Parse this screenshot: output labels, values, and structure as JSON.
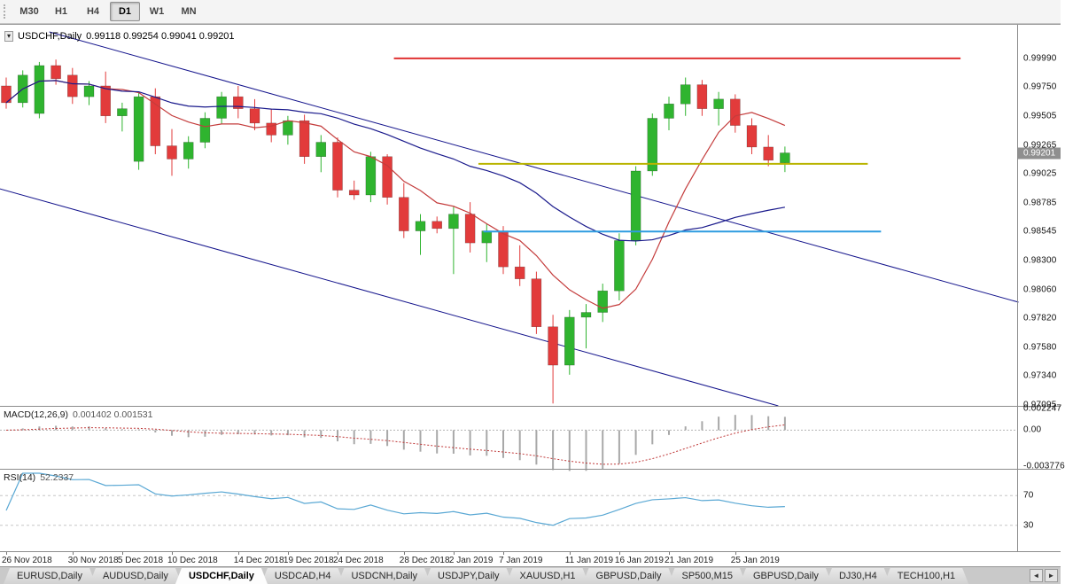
{
  "toolbar": {
    "timeframes": [
      {
        "label": "M30",
        "active": false
      },
      {
        "label": "H1",
        "active": false
      },
      {
        "label": "H4",
        "active": false
      },
      {
        "label": "D1",
        "active": true
      },
      {
        "label": "W1",
        "active": false
      },
      {
        "label": "MN",
        "active": false
      }
    ]
  },
  "icons": {
    "chart_menu": "▾",
    "tab_scroll_left": "◄",
    "tab_scroll_right": "►"
  },
  "chart": {
    "title": "USDCHF,Daily",
    "ohlc_text": "0.99118 0.99254 0.99041 0.99201",
    "current_price": "0.99201",
    "price_ticks": [
      "0.99990",
      "0.99750",
      "0.99505",
      "0.99265",
      "0.99025",
      "0.98785",
      "0.98545",
      "0.98300",
      "0.98060",
      "0.97820",
      "0.97580",
      "0.97340",
      "0.97095"
    ]
  },
  "macd": {
    "label": "MACD(12,26,9)",
    "values_text": "0.001402 0.001531",
    "main_value": 0.001402,
    "signal_value": 0.001531,
    "scale": [
      {
        "label": "0.002247",
        "value": 0.002247
      },
      {
        "label": "0.00",
        "value": 0
      },
      {
        "label": "-0.003776",
        "value": -0.003776
      }
    ],
    "range": {
      "max": 0.00245,
      "min": -0.00405
    },
    "hist_color": "#a8a8a8",
    "signal_color": "#c03a3a"
  },
  "rsi": {
    "label": "RSI(14)",
    "value_text": "52.2337",
    "value": 52.2337,
    "levels": [
      70,
      30
    ],
    "color": "#5aa8d4"
  },
  "tabs": [
    {
      "label": "EURUSD,Daily",
      "active": false
    },
    {
      "label": "AUDUSD,Daily",
      "active": false
    },
    {
      "label": "USDCHF,Daily",
      "active": true
    },
    {
      "label": "USDCAD,H4",
      "active": false
    },
    {
      "label": "USDCNH,Daily",
      "active": false
    },
    {
      "label": "USDJPY,Daily",
      "active": false
    },
    {
      "label": "XAUUSD,H1",
      "active": false
    },
    {
      "label": "GBPUSD,Daily",
      "active": false
    },
    {
      "label": "SP500,M15",
      "active": false
    },
    {
      "label": "GBPUSD,Daily",
      "active": false
    },
    {
      "label": "DJ30,H4",
      "active": false
    },
    {
      "label": "TECH100,H1",
      "active": false
    }
  ],
  "chart_data": {
    "type": "candlestick",
    "symbol": "USDCHF",
    "timeframe": "Daily",
    "current_bar": {
      "open": 0.99118,
      "high": 0.99254,
      "low": 0.99041,
      "close": 0.99201
    },
    "price_range": {
      "top": 1.0027,
      "bottom": 0.9709
    },
    "up_color": "#2fb42f",
    "down_color": "#e23b3b",
    "candles": [
      [
        "2018-11-26",
        0.9976,
        0.9983,
        0.9957,
        0.9962
      ],
      [
        "2018-11-27",
        0.9962,
        0.9989,
        0.9958,
        0.9985
      ],
      [
        "2018-11-28",
        0.9953,
        0.9996,
        0.9949,
        0.9993
      ],
      [
        "2018-11-29",
        0.9993,
        0.9998,
        0.9977,
        0.9982
      ],
      [
        "2018-11-30",
        0.9985,
        0.9991,
        0.9961,
        0.9967
      ],
      [
        "2018-12-03",
        0.9967,
        0.998,
        0.996,
        0.9976
      ],
      [
        "2018-12-04",
        0.9976,
        0.9988,
        0.9945,
        0.9951
      ],
      [
        "2018-12-05",
        0.9951,
        0.9962,
        0.9938,
        0.9957
      ],
      [
        "2018-12-06",
        0.9913,
        0.9971,
        0.9906,
        0.9967
      ],
      [
        "2018-12-07",
        0.9967,
        0.9974,
        0.9919,
        0.9926
      ],
      [
        "2018-12-10",
        0.9926,
        0.994,
        0.9901,
        0.9915
      ],
      [
        "2018-12-11",
        0.9915,
        0.9934,
        0.9907,
        0.9929
      ],
      [
        "2018-12-12",
        0.9929,
        0.9954,
        0.9924,
        0.9949
      ],
      [
        "2018-12-13",
        0.9949,
        0.9971,
        0.9944,
        0.9967
      ],
      [
        "2018-12-14",
        0.9967,
        0.9976,
        0.9949,
        0.9957
      ],
      [
        "2018-12-17",
        0.9957,
        0.9965,
        0.9939,
        0.9945
      ],
      [
        "2018-12-18",
        0.9945,
        0.9957,
        0.9929,
        0.9935
      ],
      [
        "2018-12-19",
        0.9935,
        0.9951,
        0.9927,
        0.9947
      ],
      [
        "2018-12-20",
        0.9947,
        0.9952,
        0.9911,
        0.9917
      ],
      [
        "2018-12-21",
        0.9917,
        0.9935,
        0.9904,
        0.9929
      ],
      [
        "2018-12-24",
        0.9929,
        0.9933,
        0.9883,
        0.9889
      ],
      [
        "2018-12-25",
        0.9889,
        0.9897,
        0.9881,
        0.9885
      ],
      [
        "2018-12-26",
        0.9885,
        0.9921,
        0.9879,
        0.9917
      ],
      [
        "2018-12-27",
        0.9917,
        0.9919,
        0.9877,
        0.9883
      ],
      [
        "2018-12-28",
        0.9883,
        0.9895,
        0.9849,
        0.9855
      ],
      [
        "2018-12-31",
        0.9855,
        0.9869,
        0.9835,
        0.9863
      ],
      [
        "2019-01-01",
        0.9863,
        0.9867,
        0.9853,
        0.9857
      ],
      [
        "2019-01-02",
        0.9857,
        0.9875,
        0.9819,
        0.9869
      ],
      [
        "2019-01-03",
        0.9869,
        0.9879,
        0.9837,
        0.9845
      ],
      [
        "2019-01-04",
        0.9845,
        0.9861,
        0.9829,
        0.9855
      ],
      [
        "2019-01-07",
        0.9855,
        0.9859,
        0.9819,
        0.9825
      ],
      [
        "2019-01-08",
        0.9825,
        0.9843,
        0.9809,
        0.9815
      ],
      [
        "2019-01-09",
        0.9815,
        0.9821,
        0.9769,
        0.9775
      ],
      [
        "2019-01-10",
        0.9775,
        0.9785,
        0.9711,
        0.9743
      ],
      [
        "2019-01-11",
        0.9743,
        0.9789,
        0.9735,
        0.9783
      ],
      [
        "2019-01-14",
        0.9783,
        0.9794,
        0.9757,
        0.9787
      ],
      [
        "2019-01-15",
        0.9787,
        0.9811,
        0.9779,
        0.9805
      ],
      [
        "2019-01-16",
        0.9805,
        0.9853,
        0.9797,
        0.9847
      ],
      [
        "2019-01-17",
        0.9847,
        0.9909,
        0.9843,
        0.9905
      ],
      [
        "2019-01-18",
        0.9905,
        0.9953,
        0.9901,
        0.9949
      ],
      [
        "2019-01-21",
        0.9949,
        0.9967,
        0.9939,
        0.9961
      ],
      [
        "2019-01-22",
        0.9961,
        0.9983,
        0.9951,
        0.9977
      ],
      [
        "2019-01-23",
        0.9977,
        0.9981,
        0.9951,
        0.9957
      ],
      [
        "2019-01-24",
        0.9957,
        0.9971,
        0.9943,
        0.9965
      ],
      [
        "2019-01-25",
        0.9965,
        0.9969,
        0.9937,
        0.9943
      ],
      [
        "2019-01-28",
        0.9943,
        0.9949,
        0.9919,
        0.9925
      ],
      [
        "2019-01-29",
        0.9925,
        0.9935,
        0.9909,
        0.9914
      ],
      [
        "2019-01-30",
        0.99118,
        0.99254,
        0.99041,
        0.99201
      ]
    ],
    "x_labels": [
      {
        "index": 0,
        "label": "26 Nov 2018"
      },
      {
        "index": 4,
        "label": "30 Nov 2018"
      },
      {
        "index": 7,
        "label": "5 Dec 2018"
      },
      {
        "index": 10,
        "label": "10 Dec 2018"
      },
      {
        "index": 14,
        "label": "14 Dec 2018"
      },
      {
        "index": 17,
        "label": "19 Dec 2018"
      },
      {
        "index": 20,
        "label": "24 Dec 2018"
      },
      {
        "index": 24,
        "label": "28 Dec 2018"
      },
      {
        "index": 27,
        "label": "2 Jan 2019"
      },
      {
        "index": 30,
        "label": "7 Jan 2019"
      },
      {
        "index": 34,
        "label": "11 Jan 2019"
      },
      {
        "index": 37,
        "label": "16 Jan 2019"
      },
      {
        "index": 40,
        "label": "21 Jan 2019"
      },
      {
        "index": 44,
        "label": "25 Jan 2019"
      }
    ],
    "moving_averages": [
      {
        "type": "sma",
        "period": 7,
        "color": "#c43c3c"
      },
      {
        "type": "sma",
        "period": 20,
        "color": "#1a1a8c"
      }
    ],
    "levels": [
      {
        "name": "resistance-line-red",
        "price": 0.9999,
        "i1": 23.4,
        "i2": 57.6,
        "color": "#e03232",
        "width": 2
      },
      {
        "name": "support-line-yellow",
        "price": 0.9911,
        "i1": 28.5,
        "i2": 52.0,
        "color": "#b9b400",
        "width": 2
      },
      {
        "name": "support-line-blue",
        "price": 0.98545,
        "i1": 28.8,
        "i2": 52.8,
        "color": "#2e9ce0",
        "width": 2
      }
    ],
    "trendlines": [
      {
        "name": "channel-upper-line",
        "i1": 2.6,
        "p1": 1.00211,
        "i2": 61.1,
        "p2": 0.97955,
        "color": "#14148c",
        "width": 1
      },
      {
        "name": "channel-lower-line",
        "i1": -0.4,
        "p1": 0.98902,
        "i2": 46.6,
        "p2": 0.9709,
        "color": "#14148c",
        "width": 1
      }
    ]
  }
}
